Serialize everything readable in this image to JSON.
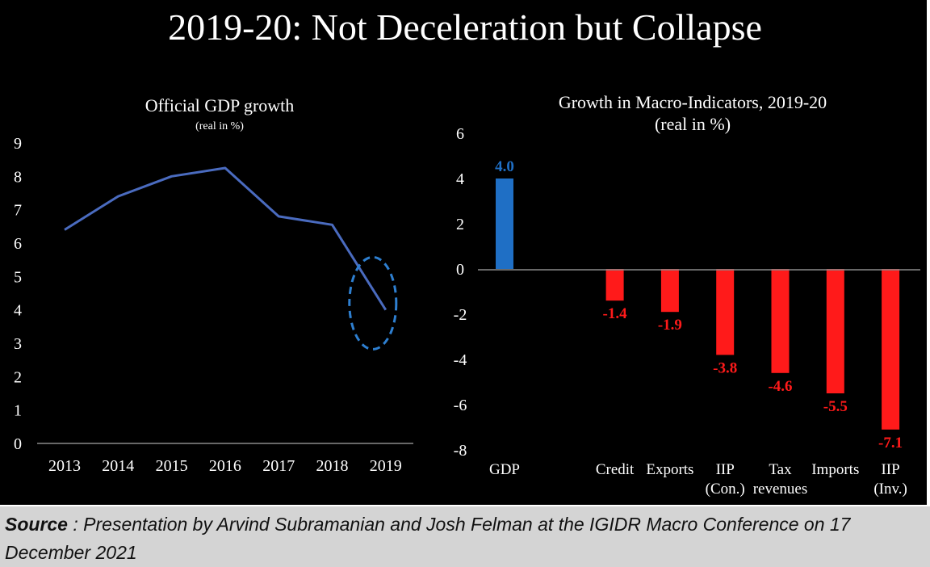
{
  "page": {
    "title": "2019-20: Not Deceleration but Collapse",
    "source_label": "Source",
    "source_text": " : Presentation by Arvind Subramanian and Josh Felman at the IGIDR Macro Conference on 17 December 2021"
  },
  "chart_data": [
    {
      "type": "line",
      "title": "Official GDP growth",
      "subtitle": "(real in %)",
      "x": [
        "2013",
        "2014",
        "2015",
        "2016",
        "2017",
        "2018",
        "2019"
      ],
      "series": [
        {
          "values": [
            6.4,
            7.4,
            8.0,
            8.25,
            6.8,
            6.55,
            4.0
          ]
        }
      ],
      "ylim": [
        0,
        9
      ],
      "yticks": [
        0,
        1,
        2,
        3,
        4,
        5,
        6,
        7,
        8,
        9
      ],
      "grid": false,
      "annotation": {
        "type": "dashed-ellipse",
        "around": "2019"
      },
      "colors": {
        "line": "#4a6bbf",
        "annotation": "#2e7fd0",
        "text": "#ffffff"
      }
    },
    {
      "type": "bar",
      "title": "Growth in Macro-Indicators, 2019-20",
      "subtitle": "(real in %)",
      "categories": [
        "GDP",
        "",
        "Credit",
        "Exports",
        "IIP (Con.)",
        "Tax revenues",
        "Imports",
        "IIP (Inv.)"
      ],
      "category_lines": [
        [
          "GDP"
        ],
        [
          ""
        ],
        [
          "Credit"
        ],
        [
          "Exports"
        ],
        [
          "IIP",
          "(Con.)"
        ],
        [
          "Tax",
          "revenues"
        ],
        [
          "Imports"
        ],
        [
          "IIP",
          "(Inv.)"
        ]
      ],
      "values": [
        4.0,
        null,
        -1.4,
        -1.9,
        -3.8,
        -4.6,
        -5.5,
        -7.1
      ],
      "labels": [
        "4.0",
        "",
        "-1.4",
        "-1.9",
        "-3.8",
        "-4.6",
        "-5.5",
        "-7.1"
      ],
      "ylim": [
        -8,
        6
      ],
      "yticks": [
        -8,
        -6,
        -4,
        -2,
        0,
        2,
        4,
        6
      ],
      "grid": false,
      "colors": {
        "positive": "#1f6fc5",
        "negative": "#ff1a1a",
        "text": "#ffffff"
      }
    }
  ]
}
